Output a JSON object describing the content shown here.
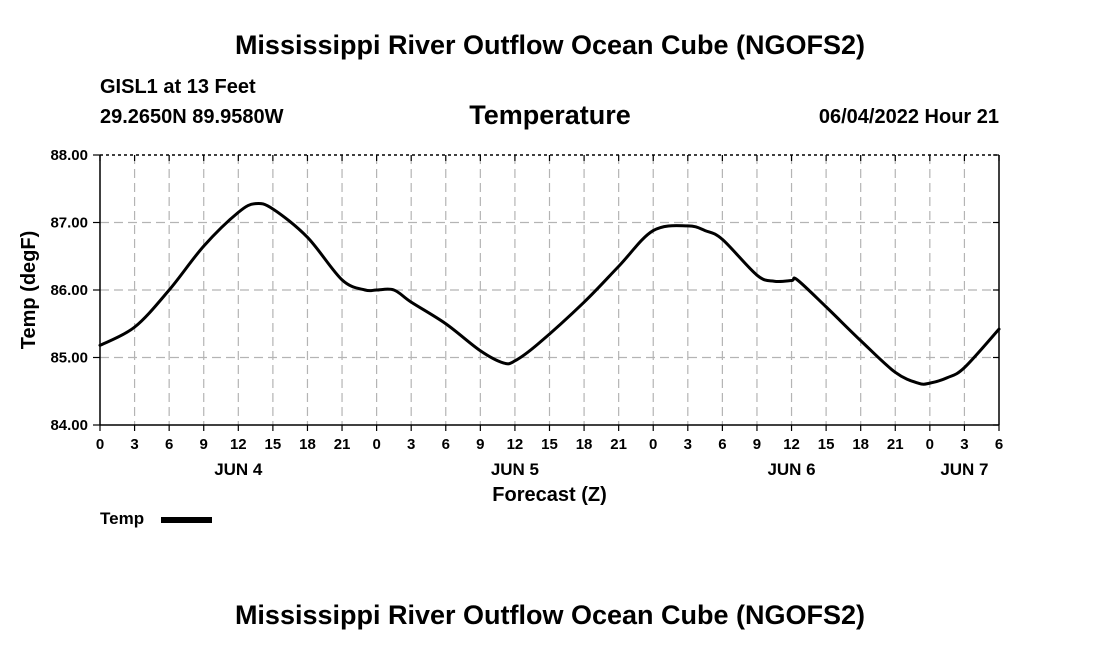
{
  "header": {
    "title": "Mississippi River Outflow Ocean Cube (NGOFS2)",
    "station": "GISL1 at 13 Feet",
    "coords": "29.2650N  89.9580W",
    "variable": "Temperature",
    "datetime": "06/04/2022 Hour 21"
  },
  "footer": {
    "title": "Mississippi River Outflow Ocean Cube (NGOFS2)"
  },
  "legend": {
    "label": "Temp"
  },
  "colors": {
    "line": "#000000",
    "grid": "#b4b4b4",
    "background": "#ffffff"
  },
  "chart_data": {
    "type": "line",
    "title": "Temperature",
    "xlabel": "Forecast (Z)",
    "ylabel": "Temp (degF)",
    "xlim": [
      0,
      78
    ],
    "ylim": [
      84.0,
      88.0
    ],
    "grid": true,
    "legend_position": "bottom-left",
    "yticks": [
      84.0,
      85.0,
      86.0,
      87.0,
      88.0
    ],
    "ytick_labels": [
      "84.00",
      "85.00",
      "86.00",
      "87.00",
      "88.00"
    ],
    "xticks": [
      0,
      3,
      6,
      9,
      12,
      15,
      18,
      21,
      24,
      27,
      30,
      33,
      36,
      39,
      42,
      45,
      48,
      51,
      54,
      57,
      60,
      63,
      66,
      69,
      72,
      75,
      78
    ],
    "xtick_labels": [
      "0",
      "3",
      "6",
      "9",
      "12",
      "15",
      "18",
      "21",
      "0",
      "3",
      "6",
      "9",
      "12",
      "15",
      "18",
      "21",
      "0",
      "3",
      "6",
      "9",
      "12",
      "15",
      "18",
      "21",
      "0",
      "3",
      "6"
    ],
    "day_labels": [
      {
        "x": 12,
        "label": "JUN 4"
      },
      {
        "x": 36,
        "label": "JUN 5"
      },
      {
        "x": 60,
        "label": "JUN 6"
      },
      {
        "x": 75,
        "label": "JUN 7"
      }
    ],
    "series": [
      {
        "name": "Temp",
        "x": [
          0,
          3,
          6,
          9,
          12,
          13.5,
          15,
          18,
          21,
          23,
          24,
          25.5,
          27,
          30,
          33,
          35,
          36,
          38,
          42,
          45,
          48,
          51,
          52.5,
          54,
          57,
          58.5,
          60,
          60.5,
          63,
          66,
          69,
          71,
          72,
          73.5,
          75,
          78
        ],
        "values": [
          85.18,
          85.45,
          86.0,
          86.65,
          87.15,
          87.28,
          87.2,
          86.78,
          86.15,
          86.0,
          86.0,
          86.0,
          85.82,
          85.5,
          85.1,
          84.92,
          84.95,
          85.2,
          85.82,
          86.35,
          86.88,
          86.95,
          86.88,
          86.75,
          86.22,
          86.13,
          86.14,
          86.15,
          85.75,
          85.25,
          84.78,
          84.62,
          84.62,
          84.7,
          84.85,
          85.42
        ]
      }
    ]
  }
}
